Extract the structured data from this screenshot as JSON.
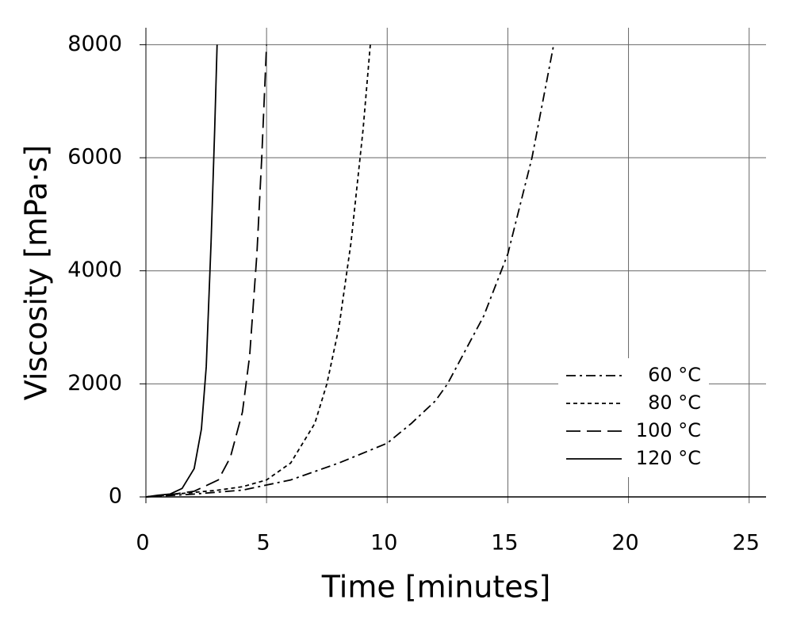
{
  "chart_data": {
    "type": "line",
    "x_label": "Time [minutes]",
    "y_label": "Viscosity [mPa·s]",
    "xlim": [
      0,
      25.7
    ],
    "ylim": [
      0,
      8300
    ],
    "xticks": [
      0,
      5,
      10,
      15,
      20,
      25
    ],
    "yticks": [
      0,
      2000,
      4000,
      6000,
      8000
    ],
    "grid": true,
    "legend": "lower right",
    "series": [
      {
        "name": "60 °C",
        "color": "#000000",
        "linestyle": "dashdot",
        "x": [
          0,
          2,
          4,
          6,
          8,
          10,
          11,
          12,
          12.5,
          13,
          14,
          15,
          16,
          16.9
        ],
        "values": [
          0,
          50,
          120,
          300,
          600,
          950,
          1300,
          1700,
          2000,
          2400,
          3200,
          4300,
          6000,
          8000
        ]
      },
      {
        "name": "80 °C",
        "color": "#000000",
        "linestyle": "dotted",
        "x": [
          0,
          1,
          2,
          3,
          4,
          5,
          6,
          7,
          7.5,
          8,
          8.5,
          9,
          9.3
        ],
        "values": [
          0,
          40,
          80,
          120,
          180,
          300,
          600,
          1300,
          2000,
          3000,
          4500,
          6500,
          8000
        ]
      },
      {
        "name": "100 °C",
        "color": "#000000",
        "linestyle": "dashed",
        "x": [
          0,
          1,
          2,
          3,
          3.5,
          4,
          4.3,
          4.6,
          4.8,
          5.0
        ],
        "values": [
          0,
          40,
          100,
          300,
          700,
          1500,
          2500,
          4300,
          6000,
          8000
        ]
      },
      {
        "name": "120 °C",
        "color": "#000000",
        "linestyle": "solid",
        "x": [
          0,
          0.5,
          1,
          1.5,
          2,
          2.3,
          2.5,
          2.7,
          2.85,
          2.95
        ],
        "values": [
          0,
          30,
          50,
          150,
          500,
          1200,
          2300,
          4500,
          6500,
          8000
        ]
      }
    ]
  }
}
